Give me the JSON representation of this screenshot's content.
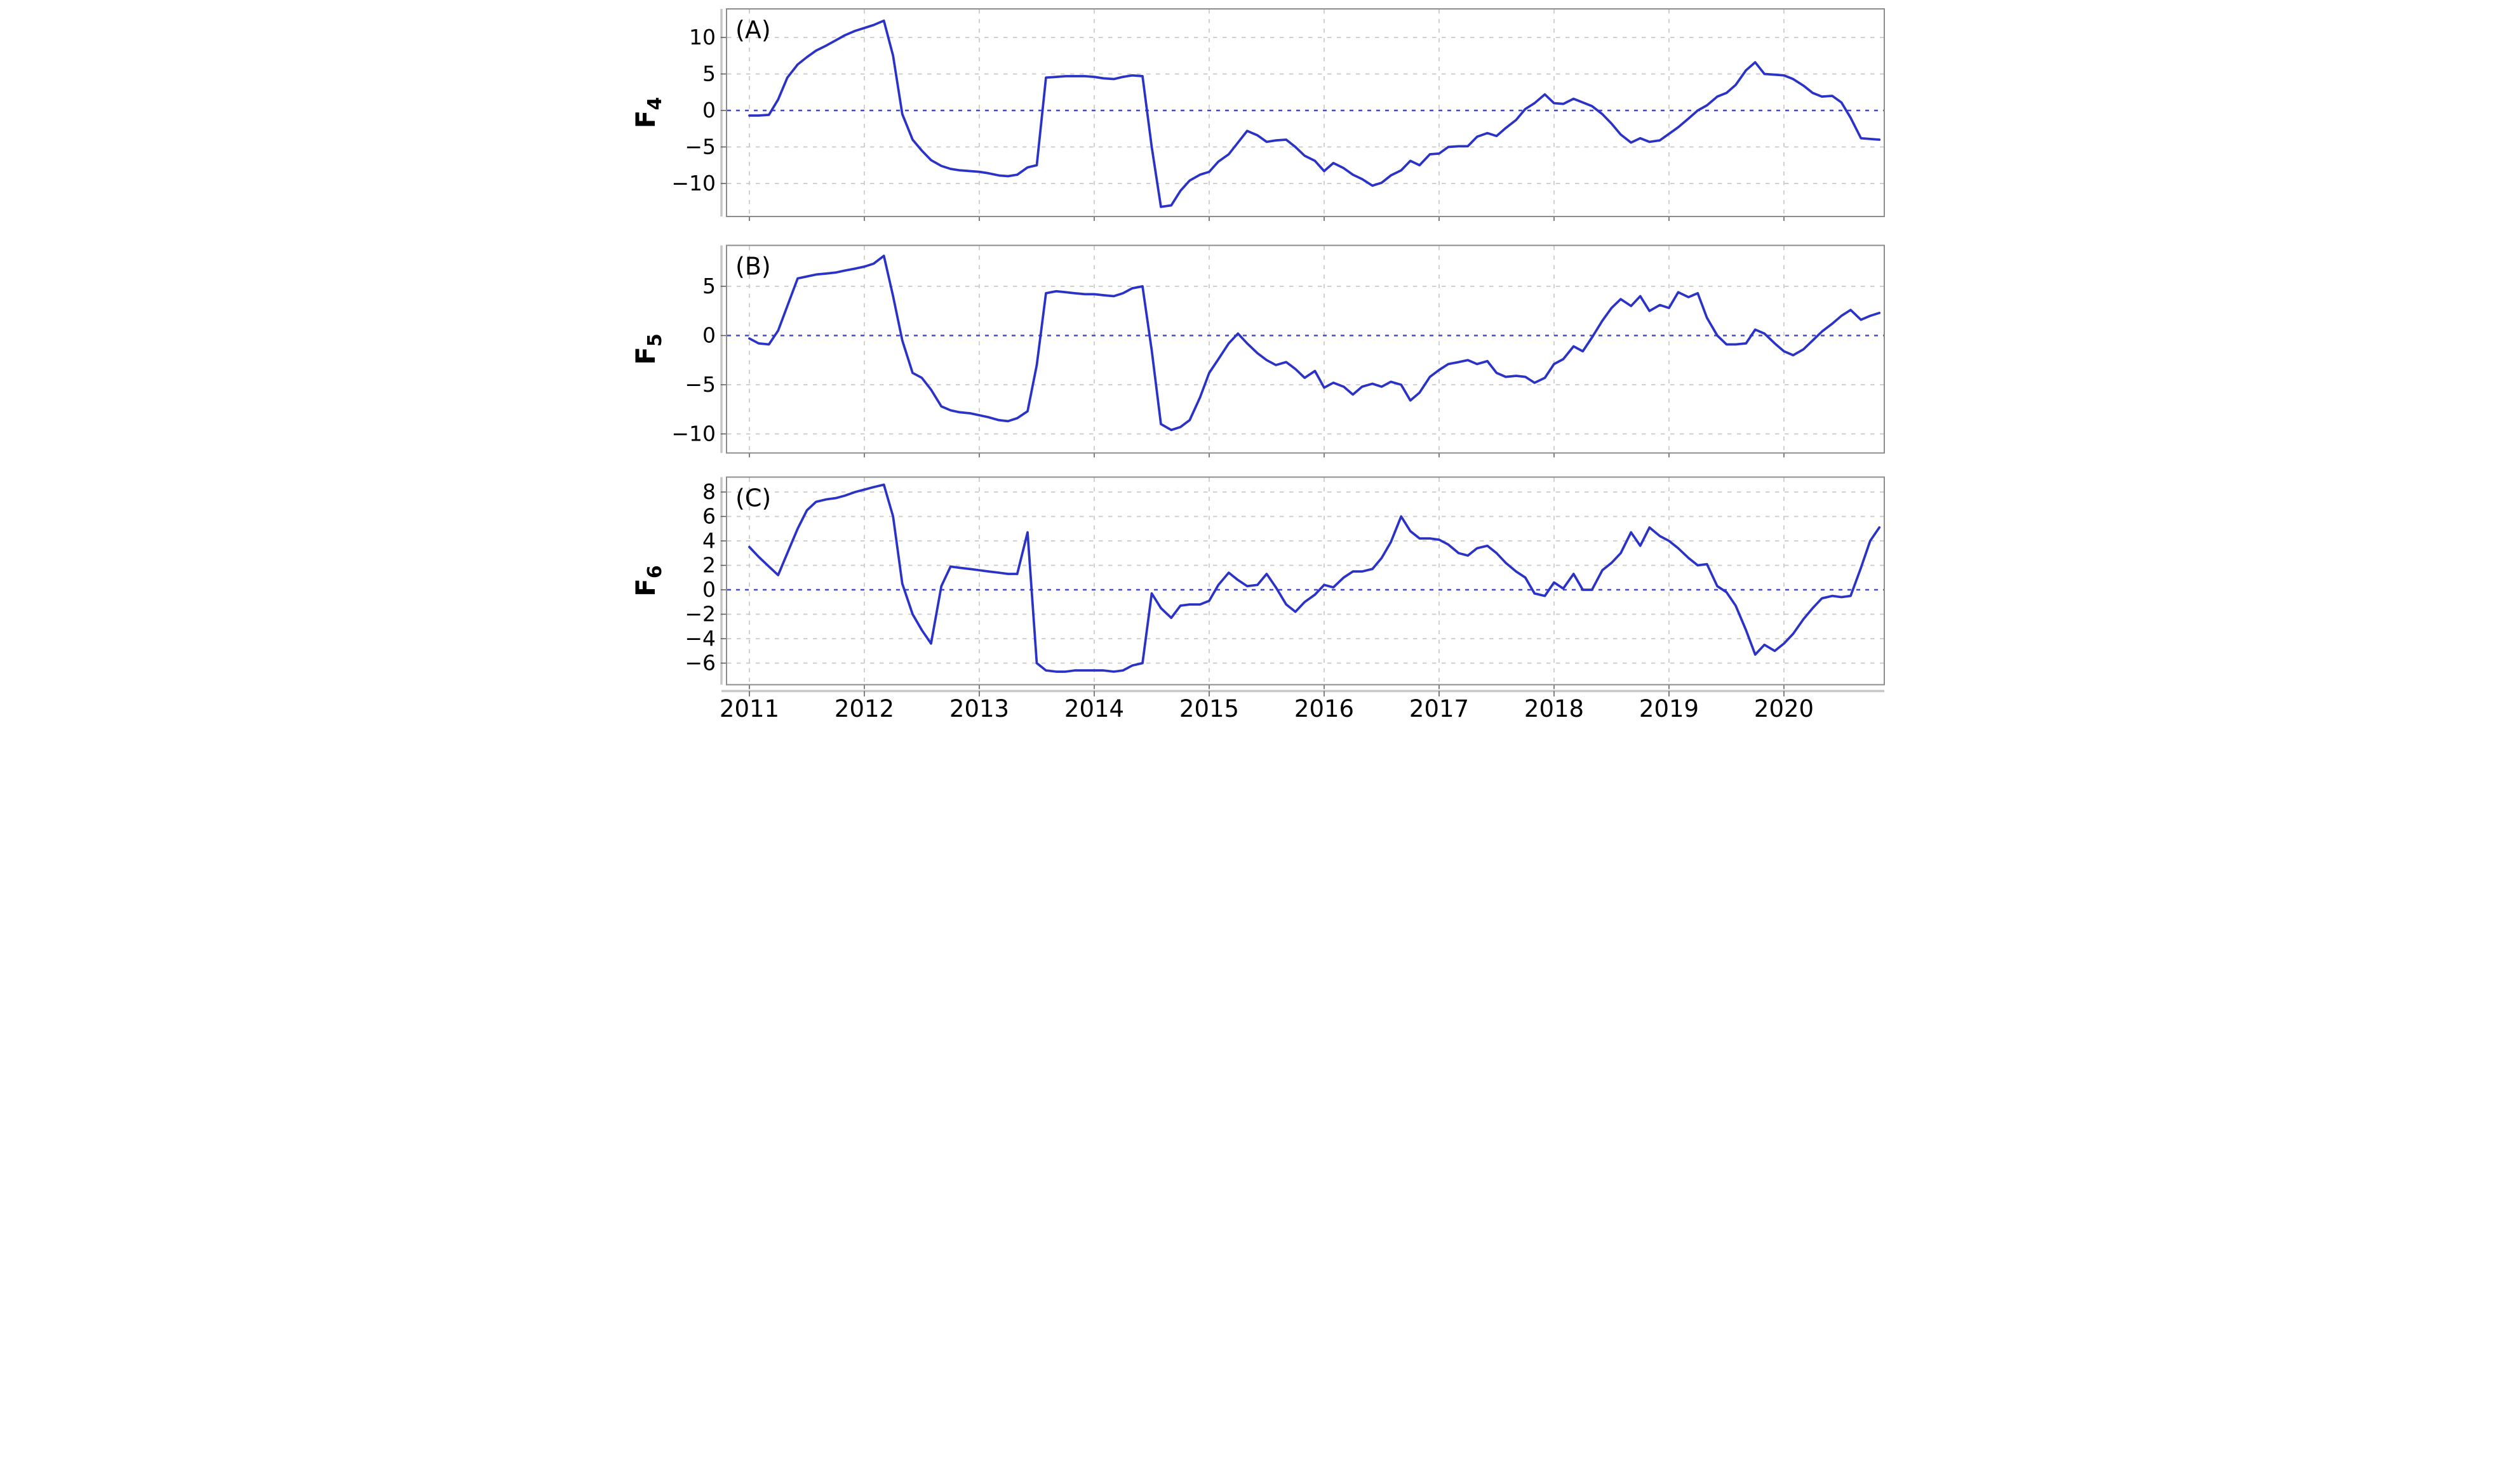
{
  "figure": {
    "description": "Three stacked monthly time-series line panels labeled (A), (B), (C) for variables F4, F5, F6 from 2011 to late 2020",
    "line_color": "#2a32c8",
    "zero_line_color": "#4348d8",
    "grid_color": "#c9c9c9",
    "border_color": "#8c8c8c",
    "tick_color": "#555555",
    "text_color": "#000000"
  },
  "x_axis": {
    "tick_labels": [
      "2011",
      "2012",
      "2013",
      "2014",
      "2015",
      "2016",
      "2017",
      "2018",
      "2019",
      "2020"
    ],
    "tick_years": [
      2011,
      2012,
      2013,
      2014,
      2015,
      2016,
      2017,
      2018,
      2019,
      2020
    ]
  },
  "chart_data": [
    {
      "type": "line",
      "panel_label": "(A)",
      "ylabel": "F4",
      "ylabel_base": "F",
      "ylabel_sub": "4",
      "legend_position": "none",
      "grid": true,
      "yticks": [
        10,
        5,
        0,
        -5,
        -10
      ],
      "ylim": [
        -14.5,
        13.9
      ],
      "xlim": [
        2010.8,
        2020.92
      ],
      "zero_reference_line": 0,
      "x": [
        2011.0,
        2011.08,
        2011.17,
        2011.25,
        2011.33,
        2011.42,
        2011.5,
        2011.58,
        2011.67,
        2011.75,
        2011.83,
        2011.92,
        2012.0,
        2012.08,
        2012.17,
        2012.25,
        2012.33,
        2012.42,
        2012.5,
        2012.58,
        2012.67,
        2012.75,
        2012.83,
        2012.92,
        2013.0,
        2013.08,
        2013.17,
        2013.25,
        2013.33,
        2013.42,
        2013.5,
        2013.58,
        2013.67,
        2013.75,
        2013.83,
        2013.92,
        2014.0,
        2014.08,
        2014.17,
        2014.25,
        2014.33,
        2014.42,
        2014.5,
        2014.58,
        2014.67,
        2014.75,
        2014.83,
        2014.92,
        2015.0,
        2015.08,
        2015.17,
        2015.25,
        2015.33,
        2015.42,
        2015.5,
        2015.58,
        2015.67,
        2015.75,
        2015.83,
        2015.92,
        2016.0,
        2016.08,
        2016.17,
        2016.25,
        2016.33,
        2016.42,
        2016.5,
        2016.58,
        2016.67,
        2016.75,
        2016.83,
        2016.92,
        2017.0,
        2017.08,
        2017.17,
        2017.25,
        2017.33,
        2017.42,
        2017.5,
        2017.58,
        2017.67,
        2017.75,
        2017.83,
        2017.92,
        2018.0,
        2018.08,
        2018.17,
        2018.25,
        2018.33,
        2018.42,
        2018.5,
        2018.58,
        2018.67,
        2018.75,
        2018.83,
        2018.92,
        2019.0,
        2019.08,
        2019.17,
        2019.25,
        2019.33,
        2019.42,
        2019.5,
        2019.58,
        2019.67,
        2019.75,
        2019.83,
        2019.92,
        2020.0,
        2020.08,
        2020.17,
        2020.25,
        2020.33,
        2020.42,
        2020.5,
        2020.58,
        2020.67,
        2020.75,
        2020.83
      ],
      "values": [
        -0.7,
        -0.7,
        -0.6,
        1.5,
        4.5,
        6.3,
        7.3,
        8.2,
        8.9,
        9.6,
        10.3,
        10.9,
        11.3,
        11.7,
        12.3,
        7.5,
        -0.5,
        -4.0,
        -5.5,
        -6.8,
        -7.6,
        -8.0,
        -8.2,
        -8.3,
        -8.4,
        -8.6,
        -8.9,
        -9.0,
        -8.8,
        -7.8,
        -7.5,
        4.5,
        4.6,
        4.7,
        4.7,
        4.7,
        4.6,
        4.4,
        4.3,
        4.6,
        4.8,
        4.7,
        -5.0,
        -13.2,
        -13.0,
        -11.0,
        -9.6,
        -8.8,
        -8.4,
        -7.0,
        -6.0,
        -4.4,
        -2.8,
        -3.4,
        -4.3,
        -4.1,
        -4.0,
        -5.0,
        -6.2,
        -6.9,
        -8.3,
        -7.2,
        -7.9,
        -8.8,
        -9.4,
        -10.3,
        -9.9,
        -8.9,
        -8.2,
        -6.9,
        -7.5,
        -6.0,
        -5.9,
        -5.0,
        -4.9,
        -4.9,
        -3.6,
        -3.1,
        -3.5,
        -2.4,
        -1.3,
        0.2,
        1.0,
        2.2,
        1.0,
        0.9,
        1.6,
        1.1,
        0.6,
        -0.5,
        -1.8,
        -3.3,
        -4.4,
        -3.8,
        -4.3,
        -4.1,
        -3.2,
        -2.3,
        -1.1,
        0.0,
        0.7,
        1.9,
        2.4,
        3.5,
        5.5,
        6.6,
        5.0,
        4.9,
        4.8,
        4.3,
        3.4,
        2.4,
        1.9,
        2.0,
        1.1,
        -1.0,
        -3.8,
        -3.9,
        -4.0
      ]
    },
    {
      "type": "line",
      "panel_label": "(B)",
      "ylabel": "F5",
      "ylabel_base": "F",
      "ylabel_sub": "5",
      "legend_position": "none",
      "grid": true,
      "yticks": [
        5,
        0,
        -5,
        -10
      ],
      "ylim": [
        -11.9,
        9.2
      ],
      "xlim": [
        2010.8,
        2020.92
      ],
      "zero_reference_line": 0,
      "x": [
        2011.0,
        2011.08,
        2011.17,
        2011.25,
        2011.33,
        2011.42,
        2011.5,
        2011.58,
        2011.67,
        2011.75,
        2011.83,
        2011.92,
        2012.0,
        2012.08,
        2012.17,
        2012.25,
        2012.33,
        2012.42,
        2012.5,
        2012.58,
        2012.67,
        2012.75,
        2012.83,
        2012.92,
        2013.0,
        2013.08,
        2013.17,
        2013.25,
        2013.33,
        2013.42,
        2013.5,
        2013.58,
        2013.67,
        2013.75,
        2013.83,
        2013.92,
        2014.0,
        2014.08,
        2014.17,
        2014.25,
        2014.33,
        2014.42,
        2014.5,
        2014.58,
        2014.67,
        2014.75,
        2014.83,
        2014.92,
        2015.0,
        2015.08,
        2015.17,
        2015.25,
        2015.33,
        2015.42,
        2015.5,
        2015.58,
        2015.67,
        2015.75,
        2015.83,
        2015.92,
        2016.0,
        2016.08,
        2016.17,
        2016.25,
        2016.33,
        2016.42,
        2016.5,
        2016.58,
        2016.67,
        2016.75,
        2016.83,
        2016.92,
        2017.0,
        2017.08,
        2017.17,
        2017.25,
        2017.33,
        2017.42,
        2017.5,
        2017.58,
        2017.67,
        2017.75,
        2017.83,
        2017.92,
        2018.0,
        2018.08,
        2018.17,
        2018.25,
        2018.33,
        2018.42,
        2018.5,
        2018.58,
        2018.67,
        2018.75,
        2018.83,
        2018.92,
        2019.0,
        2019.08,
        2019.17,
        2019.25,
        2019.33,
        2019.42,
        2019.5,
        2019.58,
        2019.67,
        2019.75,
        2019.83,
        2019.92,
        2020.0,
        2020.08,
        2020.17,
        2020.25,
        2020.33,
        2020.42,
        2020.5,
        2020.58,
        2020.67,
        2020.75,
        2020.83
      ],
      "values": [
        -0.3,
        -0.8,
        -0.9,
        0.5,
        3.0,
        5.8,
        6.0,
        6.2,
        6.3,
        6.4,
        6.6,
        6.8,
        7.0,
        7.3,
        8.1,
        4.0,
        -0.5,
        -3.8,
        -4.3,
        -5.5,
        -7.2,
        -7.6,
        -7.8,
        -7.9,
        -8.1,
        -8.3,
        -8.6,
        -8.7,
        -8.4,
        -7.7,
        -3.0,
        4.3,
        4.5,
        4.4,
        4.3,
        4.2,
        4.2,
        4.1,
        4.0,
        4.3,
        4.8,
        5.0,
        -1.5,
        -9.0,
        -9.6,
        -9.3,
        -8.6,
        -6.3,
        -3.8,
        -2.4,
        -0.8,
        0.2,
        -0.8,
        -1.8,
        -2.5,
        -3.0,
        -2.7,
        -3.4,
        -4.3,
        -3.6,
        -5.3,
        -4.8,
        -5.2,
        -6.0,
        -5.2,
        -4.9,
        -5.2,
        -4.7,
        -5.0,
        -6.6,
        -5.8,
        -4.2,
        -3.5,
        -2.9,
        -2.7,
        -2.5,
        -2.9,
        -2.6,
        -3.8,
        -4.2,
        -4.1,
        -4.2,
        -4.8,
        -4.3,
        -2.9,
        -2.4,
        -1.1,
        -1.6,
        -0.2,
        1.5,
        2.8,
        3.7,
        3.0,
        4.0,
        2.5,
        3.1,
        2.8,
        4.4,
        3.9,
        4.3,
        1.8,
        0.0,
        -0.9,
        -0.9,
        -0.8,
        0.6,
        0.2,
        -0.8,
        -1.6,
        -2.0,
        -1.4,
        -0.5,
        0.4,
        1.2,
        2.0,
        2.6,
        1.6,
        2.0,
        2.3
      ]
    },
    {
      "type": "line",
      "panel_label": "(C)",
      "ylabel": "F6",
      "ylabel_base": "F",
      "ylabel_sub": "6",
      "legend_position": "none",
      "grid": true,
      "yticks": [
        8,
        6,
        4,
        2,
        0,
        -2,
        -4,
        -6
      ],
      "ylim": [
        -7.8,
        9.2
      ],
      "xlim": [
        2010.8,
        2020.92
      ],
      "zero_reference_line": 0,
      "x": [
        2011.0,
        2011.08,
        2011.17,
        2011.25,
        2011.33,
        2011.42,
        2011.5,
        2011.58,
        2011.67,
        2011.75,
        2011.83,
        2011.92,
        2012.0,
        2012.08,
        2012.17,
        2012.25,
        2012.33,
        2012.42,
        2012.5,
        2012.58,
        2012.67,
        2012.75,
        2012.83,
        2012.92,
        2013.0,
        2013.08,
        2013.17,
        2013.25,
        2013.33,
        2013.42,
        2013.5,
        2013.58,
        2013.67,
        2013.75,
        2013.83,
        2013.92,
        2014.0,
        2014.08,
        2014.17,
        2014.25,
        2014.33,
        2014.42,
        2014.5,
        2014.58,
        2014.67,
        2014.75,
        2014.83,
        2014.92,
        2015.0,
        2015.08,
        2015.17,
        2015.25,
        2015.33,
        2015.42,
        2015.5,
        2015.58,
        2015.67,
        2015.75,
        2015.83,
        2015.92,
        2016.0,
        2016.08,
        2016.17,
        2016.25,
        2016.33,
        2016.42,
        2016.5,
        2016.58,
        2016.67,
        2016.75,
        2016.83,
        2016.92,
        2017.0,
        2017.08,
        2017.17,
        2017.25,
        2017.33,
        2017.42,
        2017.5,
        2017.58,
        2017.67,
        2017.75,
        2017.83,
        2017.92,
        2018.0,
        2018.08,
        2018.17,
        2018.25,
        2018.33,
        2018.42,
        2018.5,
        2018.58,
        2018.67,
        2018.75,
        2018.83,
        2018.92,
        2019.0,
        2019.08,
        2019.17,
        2019.25,
        2019.33,
        2019.42,
        2019.5,
        2019.58,
        2019.67,
        2019.75,
        2019.83,
        2019.92,
        2020.0,
        2020.08,
        2020.17,
        2020.25,
        2020.33,
        2020.42,
        2020.5,
        2020.58,
        2020.67,
        2020.75,
        2020.83
      ],
      "values": [
        3.5,
        2.7,
        1.9,
        1.2,
        3.0,
        5.0,
        6.5,
        7.2,
        7.4,
        7.5,
        7.7,
        8.0,
        8.2,
        8.4,
        8.6,
        6.0,
        0.5,
        -2.0,
        -3.3,
        -4.4,
        0.3,
        1.9,
        1.8,
        1.7,
        1.6,
        1.5,
        1.4,
        1.3,
        1.3,
        4.7,
        -6.0,
        -6.6,
        -6.7,
        -6.7,
        -6.6,
        -6.6,
        -6.6,
        -6.6,
        -6.7,
        -6.6,
        -6.2,
        -6.0,
        -0.3,
        -1.5,
        -2.3,
        -1.3,
        -1.2,
        -1.2,
        -0.9,
        0.4,
        1.4,
        0.8,
        0.3,
        0.4,
        1.3,
        0.2,
        -1.2,
        -1.8,
        -1.0,
        -0.4,
        0.4,
        0.2,
        1.0,
        1.5,
        1.5,
        1.7,
        2.6,
        3.9,
        6.0,
        4.8,
        4.2,
        4.2,
        4.1,
        3.7,
        3.0,
        2.8,
        3.4,
        3.6,
        3.0,
        2.2,
        1.5,
        1.0,
        -0.3,
        -0.5,
        0.6,
        0.1,
        1.3,
        0.0,
        0.0,
        1.6,
        2.2,
        3.0,
        4.7,
        3.6,
        5.1,
        4.4,
        4.0,
        3.4,
        2.6,
        2.0,
        2.1,
        0.3,
        -0.2,
        -1.3,
        -3.3,
        -5.3,
        -4.5,
        -5.0,
        -4.4,
        -3.6,
        -2.4,
        -1.5,
        -0.7,
        -0.5,
        -0.6,
        -0.5,
        1.8,
        4.0,
        5.1
      ]
    }
  ]
}
